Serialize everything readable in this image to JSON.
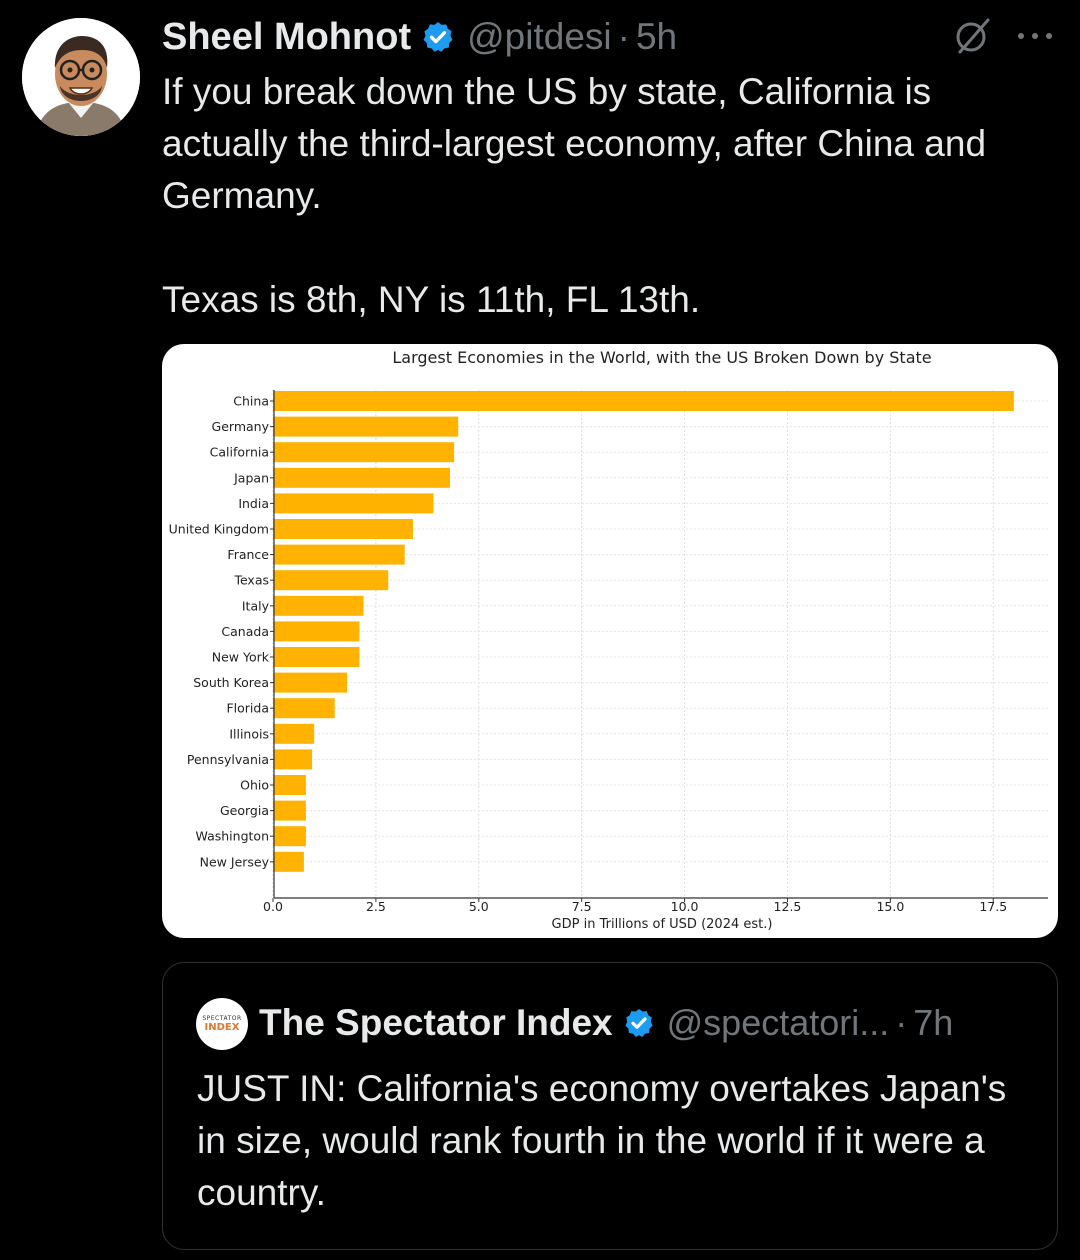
{
  "tweet": {
    "author_name": "Sheel Mohnot",
    "handle": "@pitdesi",
    "separator": "·",
    "time": "5h",
    "text_p1": "If you break down the US by state, California is actually the third-largest economy, after China and Germany.",
    "text_p2": "Texas is 8th, NY is 11th, FL 13th.",
    "icons": {
      "verified": "verified-badge-icon",
      "grok": "grok-icon",
      "more": "more-options-icon"
    },
    "colors": {
      "verified": "#1d9bf0",
      "muted": "#71767b",
      "text": "#e7e9ea",
      "background": "#000000"
    }
  },
  "chart_data": {
    "type": "bar",
    "orientation": "horizontal",
    "title": "Largest Economies in the World, with the US Broken Down by State",
    "xlabel": "GDP in Trillions of USD (2024 est.)",
    "ylabel": "",
    "categories": [
      "China",
      "Germany",
      "California",
      "Japan",
      "India",
      "United Kingdom",
      "France",
      "Texas",
      "Italy",
      "Canada",
      "New York",
      "South Korea",
      "Florida",
      "Illinois",
      "Pennsylvania",
      "Ohio",
      "Georgia",
      "Washington",
      "New Jersey"
    ],
    "values": [
      18.0,
      4.5,
      4.4,
      4.3,
      3.9,
      3.4,
      3.2,
      2.8,
      2.2,
      2.1,
      2.1,
      1.8,
      1.5,
      1.0,
      0.95,
      0.8,
      0.8,
      0.8,
      0.75
    ],
    "xlim": [
      0,
      18.9
    ],
    "xticks": [
      0.0,
      2.5,
      5.0,
      7.5,
      10.0,
      12.5,
      15.0,
      17.5
    ],
    "xtick_labels": [
      "0.0",
      "2.5",
      "5.0",
      "7.5",
      "10.0",
      "12.5",
      "15.0",
      "17.5"
    ],
    "grid": true,
    "bar_color": "#ffb300"
  },
  "quote": {
    "author_name": "The Spectator Index",
    "handle": "@spectatori...",
    "separator": "·",
    "time": "7h",
    "avatar_line1": "SPECTATOR",
    "avatar_line2": "INDEX",
    "text": "JUST IN: California's economy overtakes Japan's in size, would rank fourth in the world if it were a country."
  }
}
